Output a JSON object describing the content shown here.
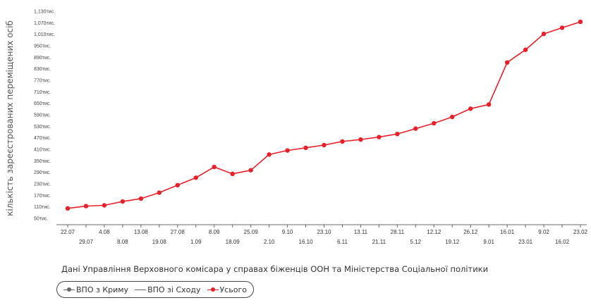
{
  "chart_data": {
    "type": "line",
    "ylabel": "кількість зареєстрованих переміщених осіб",
    "ylim": [
      50,
      1130
    ],
    "y_ticks": [
      "1,130тис.",
      "1,070тис.",
      "1,010тис.",
      "950тис.",
      "890тис.",
      "830тис.",
      "770тис.",
      "710тис.",
      "650тис.",
      "590тис.",
      "530тис.",
      "470тис.",
      "410тис.",
      "350тис.",
      "290тис.",
      "230тис.",
      "170тис.",
      "110тис.",
      "50тис."
    ],
    "categories": [
      "22.07",
      "29.07",
      "4.08",
      "8.08",
      "13.08",
      "19.08",
      "27.08",
      "1.09",
      "8.09",
      "18.09",
      "25.09",
      "2.10",
      "9.10",
      "16.10",
      "23.10",
      "6.11",
      "13.11",
      "21.11",
      "28.11",
      "5.12",
      "12.12",
      "19.12",
      "26.12",
      "9.01",
      "16.01",
      "23.01",
      "9.02",
      "16.02",
      "23.02"
    ],
    "series": [
      {
        "name": "Усього",
        "color": "#e8202a",
        "values": [
          102,
          114,
          118,
          138,
          153,
          184,
          223,
          262,
          318,
          282,
          301,
          383,
          404,
          418,
          432,
          451,
          461,
          474,
          490,
          518,
          546,
          579,
          622,
          644,
          863,
          929,
          1012,
          1044,
          1075
        ]
      }
    ],
    "grid": false,
    "legend_position": "bottom-left"
  },
  "source_note": "Дані Управління Верховного комісара у справах біженців ООН та Міністерства Соціальної політики",
  "legend": [
    {
      "label": "ВПО з Криму",
      "color": "#666666",
      "marker": "circle"
    },
    {
      "label": "ВПО зі Сходу",
      "color": "#666666",
      "marker": "line"
    },
    {
      "label": "Усього",
      "color": "#e8202a",
      "marker": "circle"
    }
  ]
}
